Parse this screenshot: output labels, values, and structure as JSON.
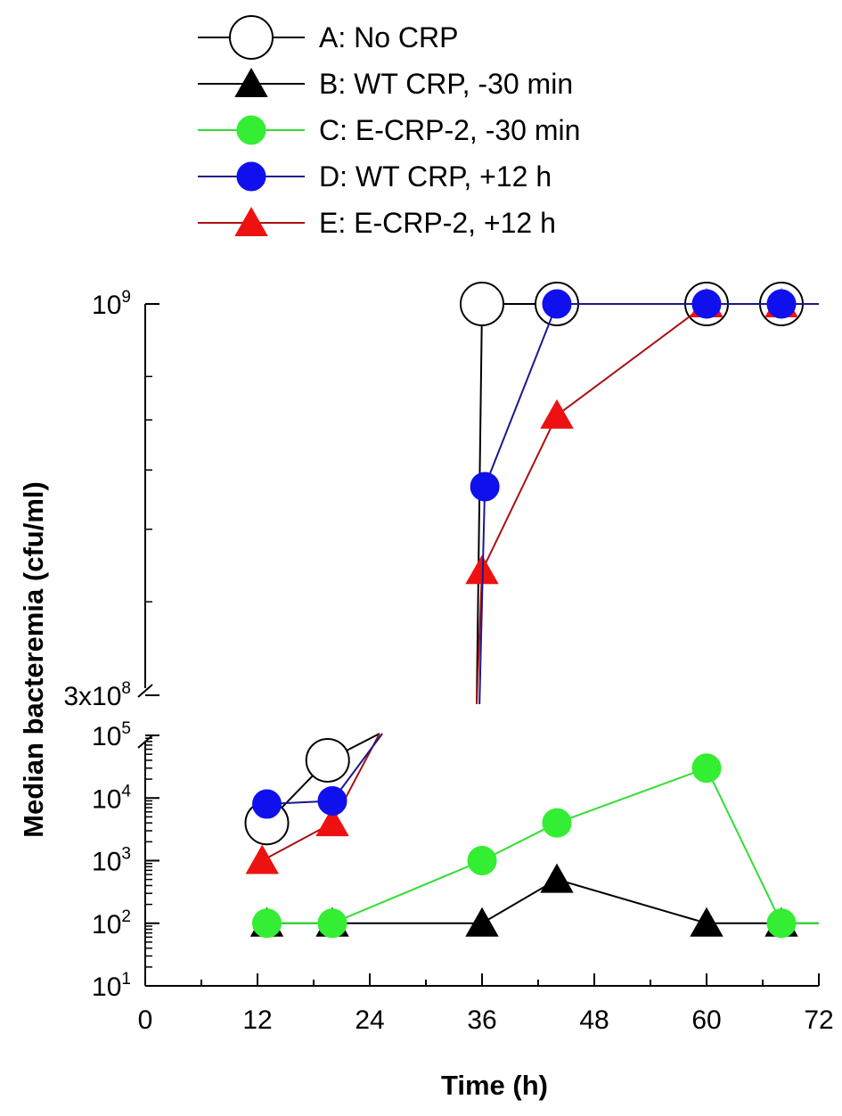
{
  "chart_data": {
    "type": "line",
    "xlabel": "Time (h)",
    "ylabel": "Median bacteremia (cfu/ml)",
    "xlim": [
      0,
      72
    ],
    "xticks": [
      "0",
      "12",
      "24",
      "36",
      "48",
      "60",
      "72"
    ],
    "y_scale": "log",
    "y_axis_break": true,
    "ylim_lower": [
      10,
      100000
    ],
    "ylim_upper": [
      300000000,
      1000000000
    ],
    "yticks_lower": [
      {
        "base": "10",
        "exp": "1"
      },
      {
        "base": "10",
        "exp": "2"
      },
      {
        "base": "10",
        "exp": "3"
      },
      {
        "base": "10",
        "exp": "4"
      },
      {
        "base": "10",
        "exp": "5"
      }
    ],
    "yticks_upper": [
      {
        "base": "3x10",
        "exp": "8"
      },
      {
        "base": "10",
        "exp": "9"
      }
    ],
    "series": [
      {
        "name": "A: No CRP",
        "color": "#000000",
        "fill": "#ffffff",
        "marker": "circle",
        "marker_size": "large",
        "points": [
          {
            "x": 13,
            "y": 4000
          },
          {
            "x": 19.5,
            "y": 40000
          },
          {
            "x": 36,
            "y": 1000000000
          },
          {
            "x": 44,
            "y": 1000000000
          },
          {
            "x": 60,
            "y": 1000000000
          },
          {
            "x": 68,
            "y": 1000000000
          }
        ]
      },
      {
        "name": "B: WT CRP, -30 min",
        "color": "#000000",
        "fill": "#000000",
        "marker": "triangle",
        "points": [
          {
            "x": 13,
            "y": 100
          },
          {
            "x": 20,
            "y": 100
          },
          {
            "x": 36,
            "y": 100
          },
          {
            "x": 44,
            "y": 500
          },
          {
            "x": 60,
            "y": 100
          },
          {
            "x": 68,
            "y": 100
          },
          {
            "x": 72,
            "y": 100
          }
        ]
      },
      {
        "name": "C: E-CRP-2, -30 min",
        "color": "#33dd33",
        "fill": "#33ee33",
        "marker": "circle",
        "points": [
          {
            "x": 13,
            "y": 100
          },
          {
            "x": 20,
            "y": 100
          },
          {
            "x": 36,
            "y": 1000
          },
          {
            "x": 44,
            "y": 4000
          },
          {
            "x": 60,
            "y": 30000
          },
          {
            "x": 68,
            "y": 100
          },
          {
            "x": 72,
            "y": 100
          }
        ]
      },
      {
        "name": "D: WT CRP, +12 h",
        "color": "#1a1a8c",
        "fill": "#1010ee",
        "marker": "circle",
        "points": [
          {
            "x": 13,
            "y": 8000
          },
          {
            "x": 20,
            "y": 9000
          },
          {
            "x": 36.3,
            "y": 570000000
          },
          {
            "x": 44,
            "y": 1000000000
          },
          {
            "x": 60,
            "y": 1000000000
          },
          {
            "x": 68,
            "y": 1000000000
          },
          {
            "x": 72,
            "y": 1000000000
          }
        ]
      },
      {
        "name": "E: E-CRP-2, +12 h",
        "color": "#aa1111",
        "fill": "#ee1111",
        "marker": "triangle",
        "points": [
          {
            "x": 12.5,
            "y": 1000
          },
          {
            "x": 20,
            "y": 4000
          },
          {
            "x": 36,
            "y": 440000000
          },
          {
            "x": 44,
            "y": 710000000
          },
          {
            "x": 60,
            "y": 1000000000
          },
          {
            "x": 68,
            "y": 1000000000
          },
          {
            "x": 72,
            "y": 1000000000
          }
        ]
      }
    ]
  }
}
